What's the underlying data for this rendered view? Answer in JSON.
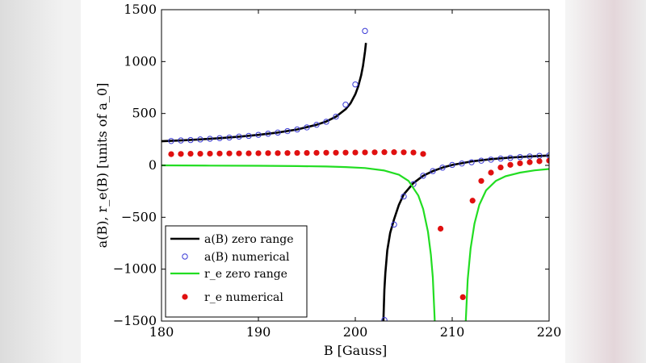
{
  "chart_data": {
    "type": "line",
    "xlabel": "B [Gauss]",
    "ylabel": "a(B), r_e(B) [units of a_0]",
    "xlim": [
      180,
      220
    ],
    "ylim": [
      -1500,
      1500
    ],
    "x_ticks": [
      "180",
      "190",
      "200",
      "210",
      "220"
    ],
    "y_ticks": [
      "1500",
      "1000",
      "500",
      "0",
      "−500",
      "−1000",
      "−1500"
    ],
    "grid": false,
    "legend_position": "bottom-left",
    "colors": {
      "a_zero_range": "#000000",
      "a_numerical": "#3a3ad6",
      "re_zero_range": "#22dd22",
      "re_numerical": "#e01010"
    },
    "series": [
      {
        "name": "a(B) zero range",
        "style": "line",
        "x": [
          180.0,
          182.0,
          184.0,
          186.0,
          188.0,
          190.0,
          192.0,
          194.0,
          196.0,
          197.0,
          198.0,
          199.0,
          199.5,
          200.0,
          200.3,
          200.6,
          200.8,
          201.0,
          201.1
        ],
        "y": [
          232,
          240,
          250,
          262,
          277,
          294,
          316,
          346,
          391,
          423,
          469,
          541,
          597,
          685,
          760,
          866,
          962,
          1096,
          1180
        ],
        "x2": [
          202.9,
          203.0,
          203.1,
          203.3,
          203.6,
          204.0,
          204.5,
          205.0,
          206.0,
          207.0,
          208.0,
          209.0,
          210.0,
          212.0,
          214.0,
          216.0,
          218.0,
          220.0
        ],
        "y2": [
          -1500,
          -1200,
          -1040,
          -820,
          -650,
          -520,
          -380,
          -280,
          -170,
          -100,
          -55,
          -22,
          4,
          38,
          60,
          75,
          86,
          95
        ]
      },
      {
        "name": "a(B) numerical",
        "style": "markers",
        "x": [
          181.0,
          182.0,
          183.0,
          184.0,
          185.0,
          186.0,
          187.0,
          188.0,
          189.0,
          190.0,
          191.0,
          192.0,
          193.0,
          194.0,
          195.0,
          196.0,
          197.0,
          198.0,
          199.0,
          200.0,
          201.0,
          203.0,
          204.0,
          205.0,
          206.0,
          207.0,
          208.0,
          209.0,
          210.0,
          211.0,
          212.0,
          213.0,
          214.0,
          215.0,
          216.0,
          217.0,
          218.0,
          219.0,
          220.0
        ],
        "y": [
          235,
          240,
          244,
          250,
          256,
          262,
          268,
          277,
          284,
          294,
          305,
          316,
          330,
          346,
          366,
          391,
          420,
          469,
          585,
          780,
          1295,
          -1490,
          -570,
          -300,
          -180,
          -100,
          -55,
          -22,
          4,
          18,
          30,
          45,
          55,
          65,
          72,
          80,
          86,
          92,
          96
        ]
      },
      {
        "name": "r_e zero range",
        "style": "line",
        "x": [
          180.0,
          185.0,
          190.0,
          194.0,
          197.0,
          199.0,
          201.0,
          203.0,
          204.5,
          205.5,
          206.5,
          207.0,
          207.5,
          207.8,
          208.0,
          208.2
        ],
        "y": [
          0,
          -2,
          -4,
          -7,
          -11,
          -16,
          -26,
          -50,
          -90,
          -150,
          -290,
          -420,
          -640,
          -860,
          -1080,
          -1500
        ],
        "x2": [
          211.4,
          211.6,
          211.9,
          212.3,
          212.8,
          213.5,
          214.5,
          215.5,
          217.0,
          218.5,
          220.0
        ],
        "y2": [
          -1500,
          -1100,
          -800,
          -560,
          -380,
          -240,
          -150,
          -105,
          -70,
          -48,
          -35
        ]
      },
      {
        "name": "r_e numerical",
        "style": "markers",
        "x": [
          181.0,
          182.0,
          183.0,
          184.0,
          185.0,
          186.0,
          187.0,
          188.0,
          189.0,
          190.0,
          191.0,
          192.0,
          193.0,
          194.0,
          195.0,
          196.0,
          197.0,
          198.0,
          199.0,
          200.0,
          201.0,
          202.0,
          203.0,
          204.0,
          205.0,
          206.0,
          207.0,
          208.8,
          211.1,
          212.1,
          213.0,
          214.0,
          215.0,
          216.0,
          217.0,
          218.0,
          219.0,
          220.0
        ],
        "y": [
          108,
          110,
          112,
          112,
          113,
          114,
          115,
          115,
          116,
          117,
          118,
          118,
          119,
          120,
          120,
          121,
          122,
          122,
          123,
          124,
          125,
          126,
          127,
          127,
          126,
          124,
          110,
          -610,
          -1270,
          -340,
          -150,
          -70,
          -20,
          5,
          20,
          30,
          40,
          45
        ]
      }
    ]
  }
}
